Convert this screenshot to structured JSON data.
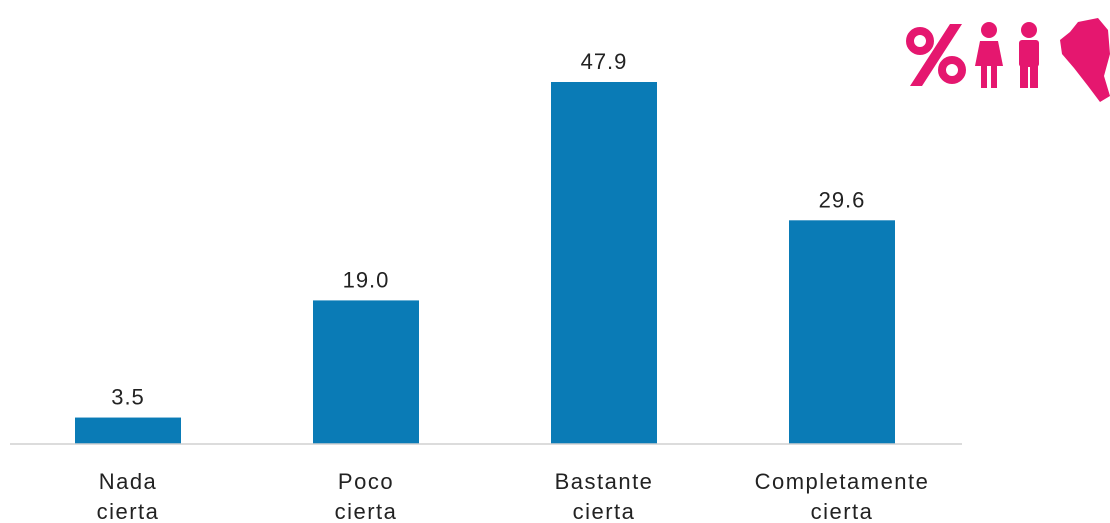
{
  "logo": {
    "icon_names": [
      "percent-icon",
      "girl-icon",
      "boy-icon",
      "peru-map-icon"
    ],
    "color": "#e5176f"
  },
  "chart_data": {
    "type": "bar",
    "categories": [
      [
        "Nada",
        "cierta"
      ],
      [
        "Poco",
        "cierta"
      ],
      [
        "Bastante",
        "cierta"
      ],
      [
        "Completamente",
        "cierta"
      ]
    ],
    "values": [
      3.5,
      19.0,
      47.9,
      29.6
    ],
    "value_labels": [
      "3.5",
      "19.0",
      "47.9",
      "29.6"
    ],
    "ylim": [
      0,
      50
    ],
    "bar_color": "#0a7bb6",
    "grid": false,
    "legend": "none"
  }
}
